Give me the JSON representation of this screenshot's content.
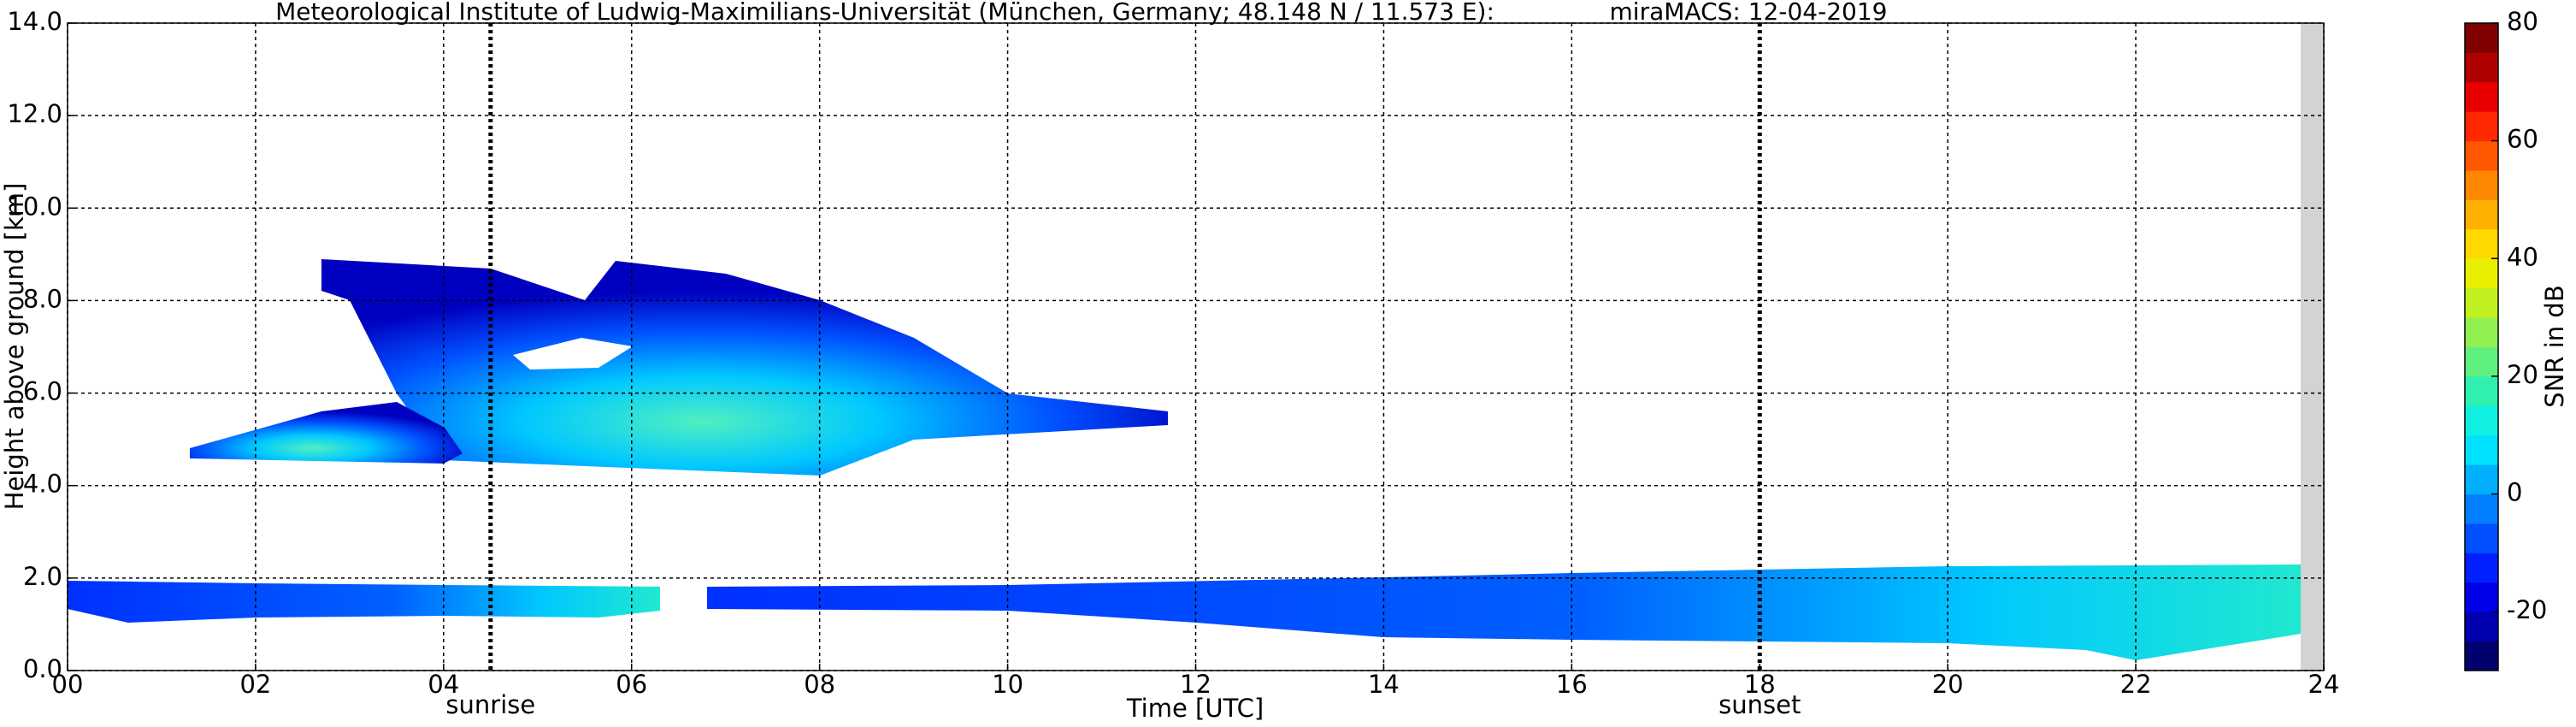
{
  "chart_data": {
    "type": "heatmap",
    "title": "Meteorological Institute of Ludwig-Maximilians-Universität (München, Germany; 48.148 N / 11.573 E):",
    "subtitle": "miraMACS: 12-04-2019",
    "x_label": "Time [UTC]",
    "y_label": "Height above ground [km]",
    "xlim": [
      0,
      24
    ],
    "xticks": [
      {
        "value": 0,
        "label": "00"
      },
      {
        "value": 2,
        "label": "02"
      },
      {
        "value": 4,
        "label": "04"
      },
      {
        "value": 6,
        "label": "06"
      },
      {
        "value": 8,
        "label": "08"
      },
      10,
      12,
      14,
      16,
      18,
      20,
      22,
      24
    ],
    "ylim": [
      0,
      14
    ],
    "yticks": [
      {
        "value": 0,
        "label": "0.0"
      },
      {
        "value": 2,
        "label": "2.0"
      },
      {
        "value": 4,
        "label": "4.0"
      },
      {
        "value": 6,
        "label": "6.0"
      },
      {
        "value": 8,
        "label": "8.0"
      },
      {
        "value": 10,
        "label": "10.0"
      },
      {
        "value": 12,
        "label": "12.0"
      },
      {
        "value": 14,
        "label": "14.0"
      }
    ],
    "grid": true,
    "markers": [
      {
        "label": "sunrise",
        "x": 4.5
      },
      {
        "label": "sunset",
        "x": 18
      }
    ],
    "colorbar": {
      "label": "SNR in dB",
      "lim": [
        -30,
        80
      ],
      "ticks": [
        -20,
        0,
        20,
        40,
        60,
        80
      ],
      "colors": [
        "#00006f",
        "#0000b0",
        "#0000e8",
        "#0020ff",
        "#0050ff",
        "#0080ff",
        "#00b0ff",
        "#00e0ff",
        "#10f0e0",
        "#30f0b0",
        "#60f080",
        "#90f050",
        "#c0f020",
        "#e8f000",
        "#ffd800",
        "#ffb000",
        "#ff8800",
        "#ff5800",
        "#ff2800",
        "#e80000",
        "#b00000",
        "#800000"
      ]
    }
  }
}
